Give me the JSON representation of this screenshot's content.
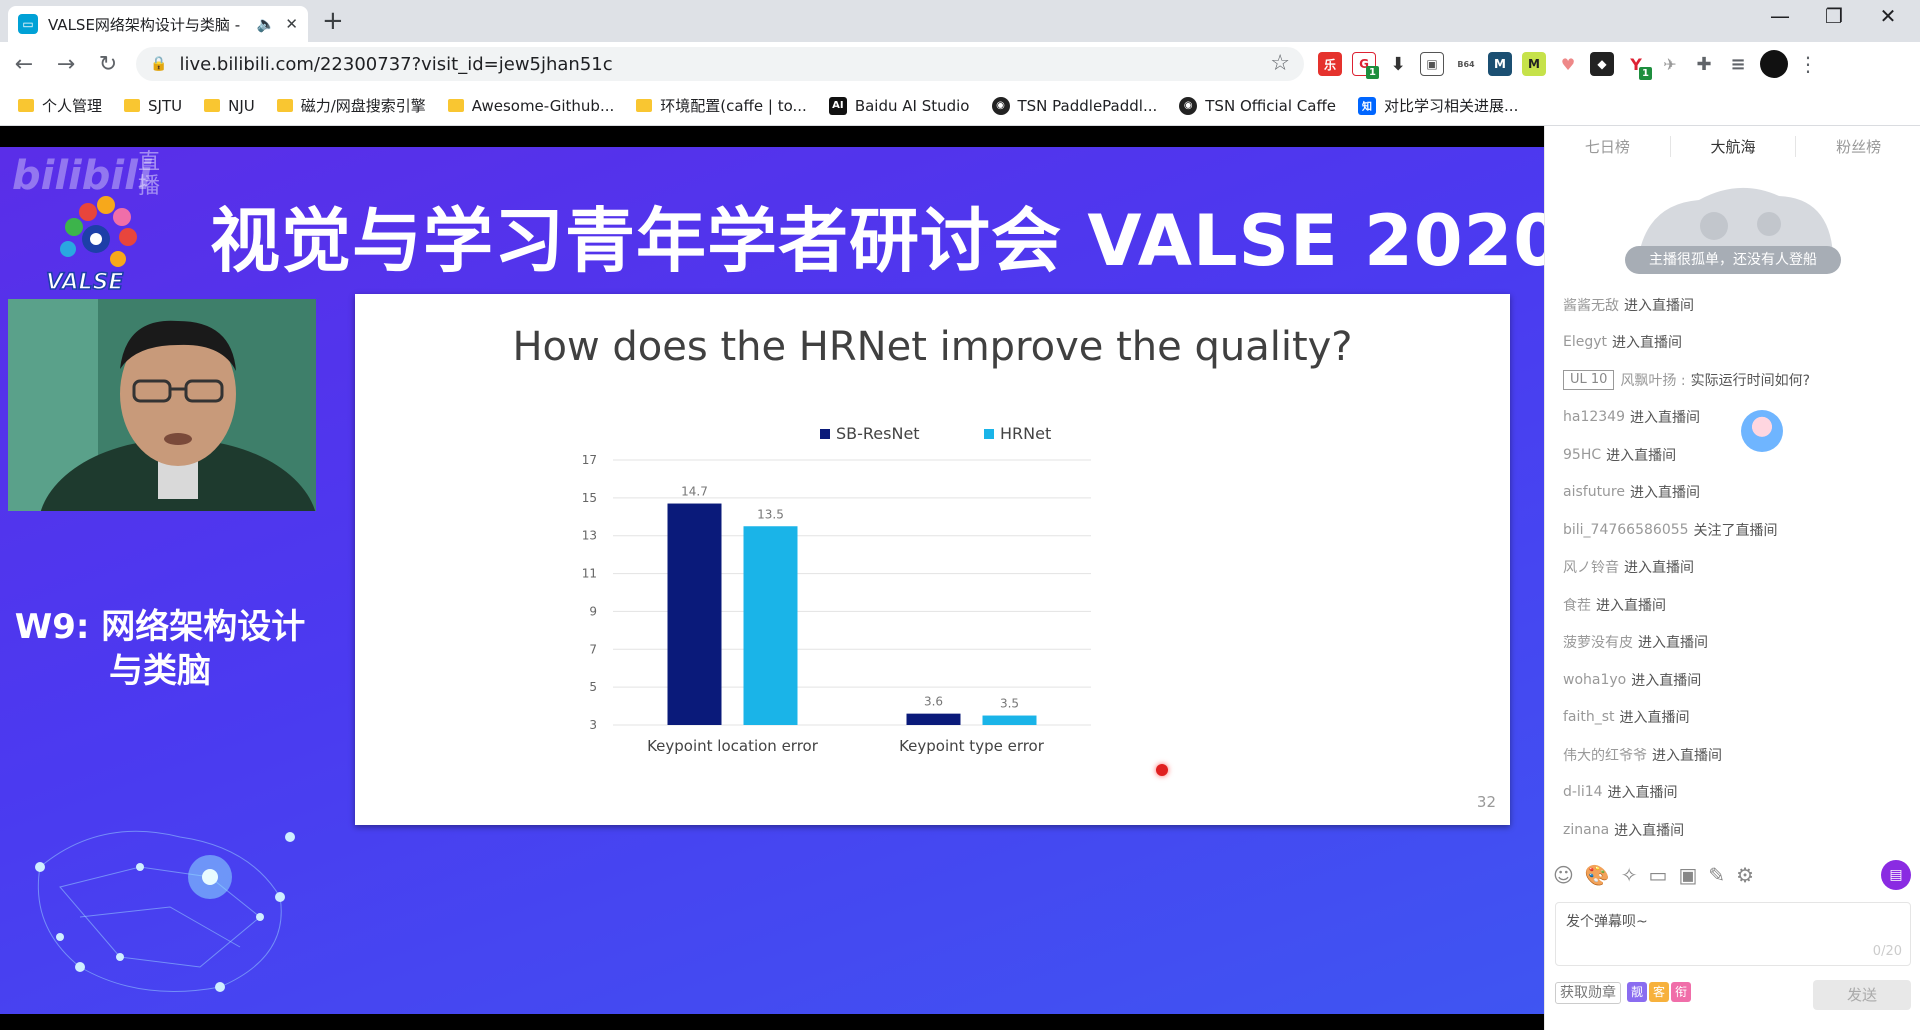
{
  "browser": {
    "tab_title": "VALSE网络架构设计与类脑 -",
    "url": "live.bilibili.com/22300737?visit_id=jew5jhan51c",
    "extension_badge_1": "1",
    "extension_badge_2": "1"
  },
  "bookmarks": [
    {
      "label": "个人管理",
      "icon": "folder-icon"
    },
    {
      "label": "SJTU",
      "icon": "folder-icon"
    },
    {
      "label": "NJU",
      "icon": "folder-icon"
    },
    {
      "label": "磁力/网盘搜索引擎",
      "icon": "folder-icon"
    },
    {
      "label": "Awesome-Github...",
      "icon": "folder-icon"
    },
    {
      "label": "环境配置(caffe | to...",
      "icon": "folder-icon"
    },
    {
      "label": "Baidu AI Studio",
      "icon": "ai-studio-icon"
    },
    {
      "label": "TSN PaddlePaddl...",
      "icon": "github-icon"
    },
    {
      "label": "TSN Official Caffe",
      "icon": "github-icon"
    },
    {
      "label": "对比学习相关进展...",
      "icon": "zhihu-icon"
    }
  ],
  "stream": {
    "banner_title": "视觉与学习青年学者研讨会 VALSE 2020",
    "logo_text": "VALSE",
    "watermark": "bilibili",
    "watermark_live": "直播",
    "workshop_line1": "W9: 网络架构设计",
    "workshop_line2": "与类脑",
    "slide_title": "How does the HRNet improve the quality?",
    "page_number": "32"
  },
  "chart_data": {
    "type": "bar",
    "categories": [
      "Keypoint location error",
      "Keypoint type error"
    ],
    "series": [
      {
        "name": "SB-ResNet",
        "values": [
          14.7,
          3.6
        ],
        "color": "#0a1a7a"
      },
      {
        "name": "HRNet",
        "values": [
          13.5,
          3.5
        ],
        "color": "#1ab4e8"
      }
    ],
    "ylim": [
      3,
      17
    ],
    "yticks": [
      3,
      5,
      7,
      9,
      11,
      13,
      15,
      17
    ],
    "legend": "top",
    "grid": true
  },
  "panel": {
    "rank_tabs": [
      "七日榜",
      "大航海",
      "粉丝榜"
    ],
    "rank_empty_text": "主播很孤单，还没有人登船",
    "chat": [
      {
        "user": "酱酱无敌",
        "action": "进入直播间"
      },
      {
        "user": "Elegyt",
        "action": "进入直播间"
      },
      {
        "level": "UL 10",
        "user": "风飘叶扬 :",
        "action": "实际运行时间如何?"
      },
      {
        "user": "ha12349",
        "action": "进入直播间"
      },
      {
        "user": "95HC",
        "action": "进入直播间"
      },
      {
        "user": "aisfuture",
        "action": "进入直播间"
      },
      {
        "user": "bili_74766586055",
        "action": "关注了直播间"
      },
      {
        "user": "风ノ铃音",
        "action": "进入直播间"
      },
      {
        "user": "食茬",
        "action": "进入直播间"
      },
      {
        "user": "菠萝没有皮",
        "action": "进入直播间"
      },
      {
        "user": "woha1yo",
        "action": "进入直播间"
      },
      {
        "user": "faith_st",
        "action": "进入直播间"
      },
      {
        "user": "伟大的红爷爷",
        "action": "进入直播间"
      },
      {
        "user": "d-li14",
        "action": "进入直播间"
      },
      {
        "user": "zinana",
        "action": "进入直播间"
      }
    ],
    "danmaku_placeholder": "发个弹幕呗~",
    "danmaku_count": "0/20",
    "medal_button": "获取勋章",
    "badges": [
      "靓",
      "客",
      "衔"
    ],
    "send_button": "发送"
  }
}
